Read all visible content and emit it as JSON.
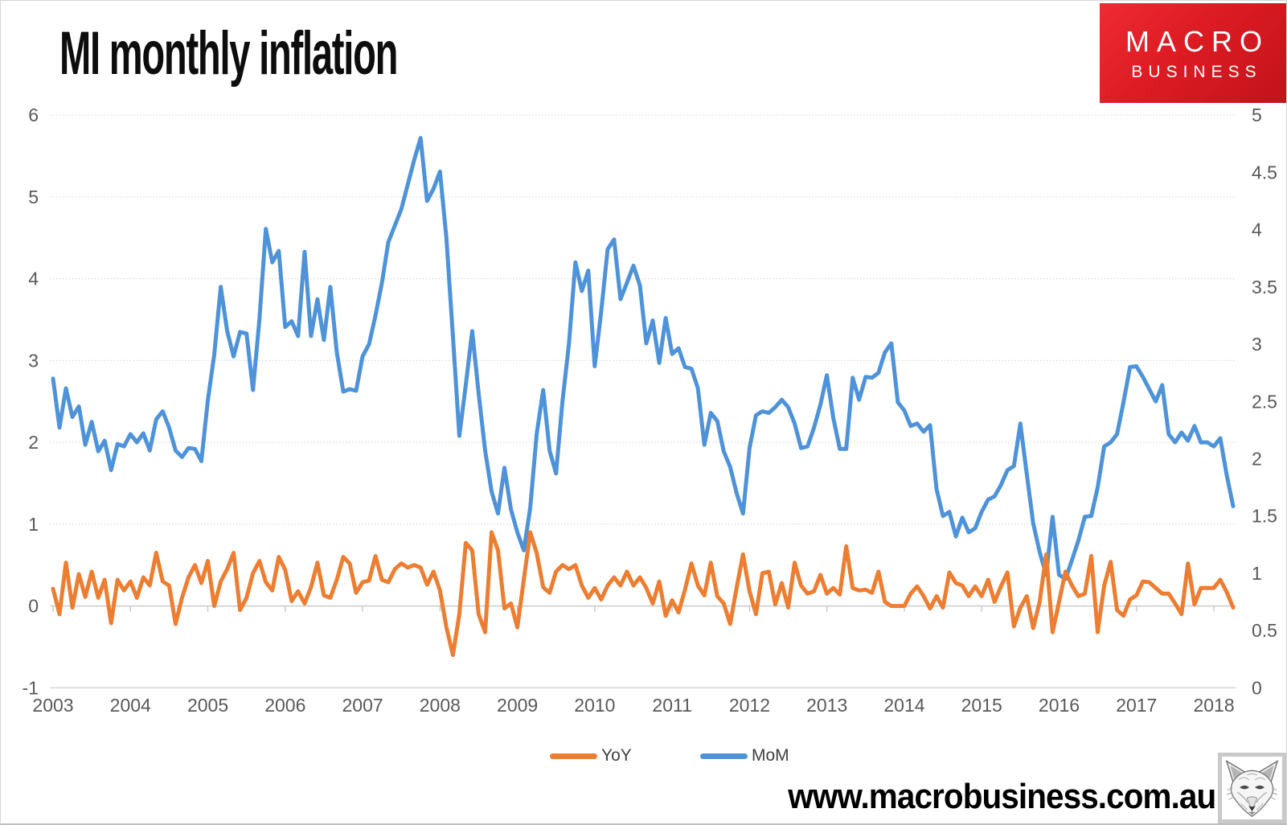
{
  "header": {
    "title": "MI monthly inflation"
  },
  "logo": {
    "line1": "MACRO",
    "line2": "BUSINESS",
    "bg_color": "#d5161e",
    "text_color": "#ffffff"
  },
  "footer": {
    "watermark": "www.macrobusiness.com.au"
  },
  "wolf_icon": "fox-sketch",
  "chart_data": {
    "type": "line",
    "title": "MI monthly inflation",
    "xlabel": "",
    "ylabel": "",
    "grid": true,
    "legend_position": "bottom",
    "x": {
      "start_year": 2003,
      "start_month": 1,
      "points": 184,
      "tick_labels": [
        "2003",
        "2004",
        "2005",
        "2006",
        "2007",
        "2008",
        "2009",
        "2010",
        "2011",
        "2012",
        "2013",
        "2014",
        "2015",
        "2016",
        "2017",
        "2018"
      ]
    },
    "left_axis": {
      "range": [
        -1,
        6
      ],
      "ticks": [
        "6",
        "5",
        "4",
        "3",
        "2",
        "1",
        "0",
        "-1"
      ]
    },
    "right_axis": {
      "range": [
        0,
        5
      ],
      "ticks": [
        "5",
        "4.5",
        "4",
        "3.5",
        "3",
        "2.5",
        "2",
        "1.5",
        "1",
        "0.5",
        "0"
      ]
    },
    "legend": [
      {
        "label": "YoY",
        "color": "#ED7D31"
      },
      {
        "label": "MoM",
        "color": "#4E93D9"
      }
    ],
    "series": [
      {
        "name": "YoY",
        "axis": "left",
        "color": "#ED7D31",
        "values": [
          0.21,
          -0.1,
          0.53,
          -0.02,
          0.39,
          0.11,
          0.42,
          0.1,
          0.32,
          -0.21,
          0.32,
          0.19,
          0.3,
          0.1,
          0.35,
          0.25,
          0.65,
          0.3,
          0.25,
          -0.22,
          0.1,
          0.35,
          0.5,
          0.28,
          0.55,
          0.0,
          0.3,
          0.45,
          0.65,
          -0.05,
          0.1,
          0.4,
          0.55,
          0.29,
          0.19,
          0.6,
          0.44,
          0.06,
          0.18,
          0.03,
          0.23,
          0.53,
          0.13,
          0.1,
          0.32,
          0.6,
          0.52,
          0.16,
          0.29,
          0.31,
          0.61,
          0.32,
          0.29,
          0.45,
          0.52,
          0.47,
          0.5,
          0.47,
          0.26,
          0.42,
          0.19,
          -0.26,
          -0.6,
          -0.1,
          0.77,
          0.68,
          -0.1,
          -0.32,
          0.9,
          0.68,
          -0.03,
          0.03,
          -0.26,
          0.32,
          0.9,
          0.65,
          0.23,
          0.16,
          0.42,
          0.5,
          0.45,
          0.5,
          0.25,
          0.1,
          0.22,
          0.08,
          0.25,
          0.35,
          0.25,
          0.42,
          0.25,
          0.35,
          0.22,
          0.03,
          0.3,
          -0.12,
          0.07,
          -0.08,
          0.2,
          0.52,
          0.25,
          0.13,
          0.53,
          0.12,
          0.03,
          -0.22,
          0.22,
          0.63,
          0.18,
          -0.1,
          0.4,
          0.42,
          0.02,
          0.28,
          -0.02,
          0.53,
          0.25,
          0.15,
          0.18,
          0.38,
          0.15,
          0.22,
          0.14,
          0.73,
          0.22,
          0.19,
          0.2,
          0.16,
          0.42,
          0.05,
          0.0,
          0.0,
          0.0,
          0.15,
          0.24,
          0.12,
          -0.03,
          0.12,
          -0.02,
          0.41,
          0.28,
          0.25,
          0.12,
          0.24,
          0.12,
          0.32,
          0.05,
          0.24,
          0.41,
          -0.25,
          -0.02,
          0.12,
          -0.27,
          0.05,
          0.63,
          -0.32,
          0.05,
          0.42,
          0.25,
          0.12,
          0.15,
          0.61,
          -0.32,
          0.25,
          0.54,
          -0.05,
          -0.12,
          0.08,
          0.13,
          0.3,
          0.29,
          0.22,
          0.15,
          0.15,
          0.03,
          -0.1,
          0.52,
          0.02,
          0.22,
          0.22,
          0.22,
          0.32,
          0.17,
          -0.02
        ]
      },
      {
        "name": "MoM",
        "axis": "left",
        "color": "#4E93D9",
        "values": [
          2.78,
          2.18,
          2.66,
          2.31,
          2.44,
          1.97,
          2.25,
          1.89,
          2.02,
          1.66,
          1.98,
          1.95,
          2.1,
          2.0,
          2.11,
          1.9,
          2.28,
          2.38,
          2.18,
          1.9,
          1.82,
          1.93,
          1.92,
          1.77,
          2.51,
          3.07,
          3.9,
          3.36,
          3.05,
          3.35,
          3.33,
          2.64,
          3.5,
          4.61,
          4.2,
          4.34,
          3.41,
          3.48,
          3.3,
          4.33,
          3.3,
          3.75,
          3.25,
          3.9,
          3.1,
          2.62,
          2.65,
          2.63,
          3.05,
          3.2,
          3.55,
          3.95,
          4.45,
          4.65,
          4.85,
          5.15,
          5.45,
          5.72,
          4.95,
          5.1,
          5.31,
          4.5,
          3.3,
          2.08,
          2.7,
          3.36,
          2.6,
          1.9,
          1.4,
          1.13,
          1.69,
          1.18,
          0.9,
          0.68,
          1.2,
          2.1,
          2.64,
          1.9,
          1.62,
          2.5,
          3.2,
          4.2,
          3.85,
          4.1,
          2.93,
          3.6,
          4.36,
          4.48,
          3.75,
          3.95,
          4.16,
          3.92,
          3.21,
          3.49,
          2.97,
          3.52,
          3.08,
          3.15,
          2.92,
          2.9,
          2.66,
          1.97,
          2.36,
          2.26,
          1.89,
          1.7,
          1.38,
          1.13,
          1.93,
          2.33,
          2.38,
          2.36,
          2.43,
          2.52,
          2.43,
          2.23,
          1.93,
          1.95,
          2.18,
          2.46,
          2.82,
          2.3,
          1.92,
          1.92,
          2.79,
          2.52,
          2.8,
          2.79,
          2.85,
          3.1,
          3.21,
          2.49,
          2.39,
          2.2,
          2.23,
          2.13,
          2.21,
          1.43,
          1.1,
          1.15,
          0.85,
          1.08,
          0.9,
          0.95,
          1.15,
          1.3,
          1.34,
          1.48,
          1.66,
          1.71,
          2.23,
          1.61,
          1.01,
          0.66,
          0.38,
          1.09,
          0.38,
          0.33,
          0.56,
          0.8,
          1.09,
          1.1,
          1.45,
          1.95,
          2.0,
          2.1,
          2.49,
          2.92,
          2.93,
          2.8,
          2.65,
          2.5,
          2.7,
          2.1,
          2.0,
          2.12,
          2.02,
          2.2,
          2.0,
          2.0,
          1.95,
          2.05,
          1.6,
          1.22
        ]
      }
    ]
  }
}
